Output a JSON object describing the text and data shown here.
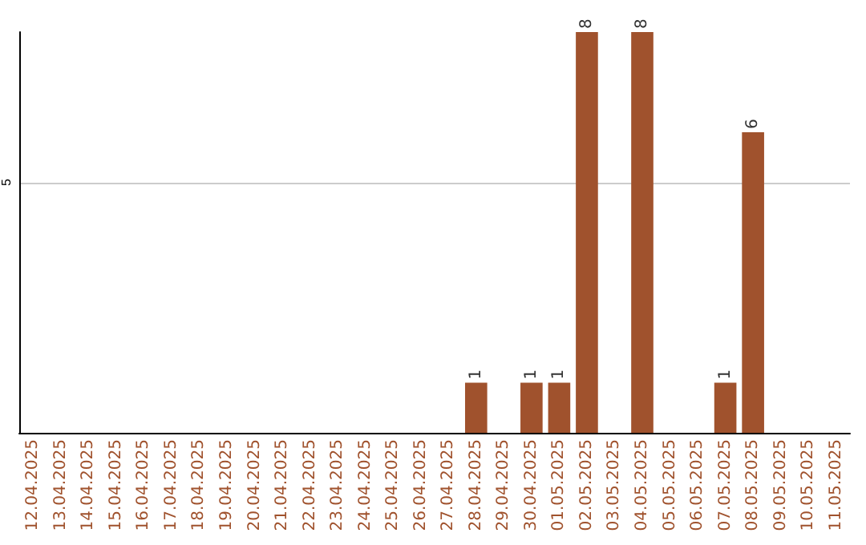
{
  "chart_data": {
    "type": "bar",
    "categories": [
      "12.04.2025",
      "13.04.2025",
      "14.04.2025",
      "15.04.2025",
      "16.04.2025",
      "17.04.2025",
      "18.04.2025",
      "19.04.2025",
      "20.04.2025",
      "21.04.2025",
      "22.04.2025",
      "23.04.2025",
      "24.04.2025",
      "25.04.2025",
      "26.04.2025",
      "27.04.2025",
      "28.04.2025",
      "29.04.2025",
      "30.04.2025",
      "01.05.2025",
      "02.05.2025",
      "03.05.2025",
      "04.05.2025",
      "05.05.2025",
      "06.05.2025",
      "07.05.2025",
      "08.05.2025",
      "09.05.2025",
      "10.05.2025",
      "11.05.2025"
    ],
    "values": [
      null,
      null,
      null,
      null,
      null,
      null,
      null,
      null,
      null,
      null,
      null,
      null,
      null,
      null,
      null,
      null,
      1,
      null,
      1,
      1,
      8,
      null,
      8,
      null,
      null,
      1,
      6,
      null,
      null,
      null
    ],
    "color": "#a0522d",
    "ylim": [
      0,
      8
    ],
    "yticks": [
      5
    ],
    "grid": "y",
    "data_labels": true
  }
}
